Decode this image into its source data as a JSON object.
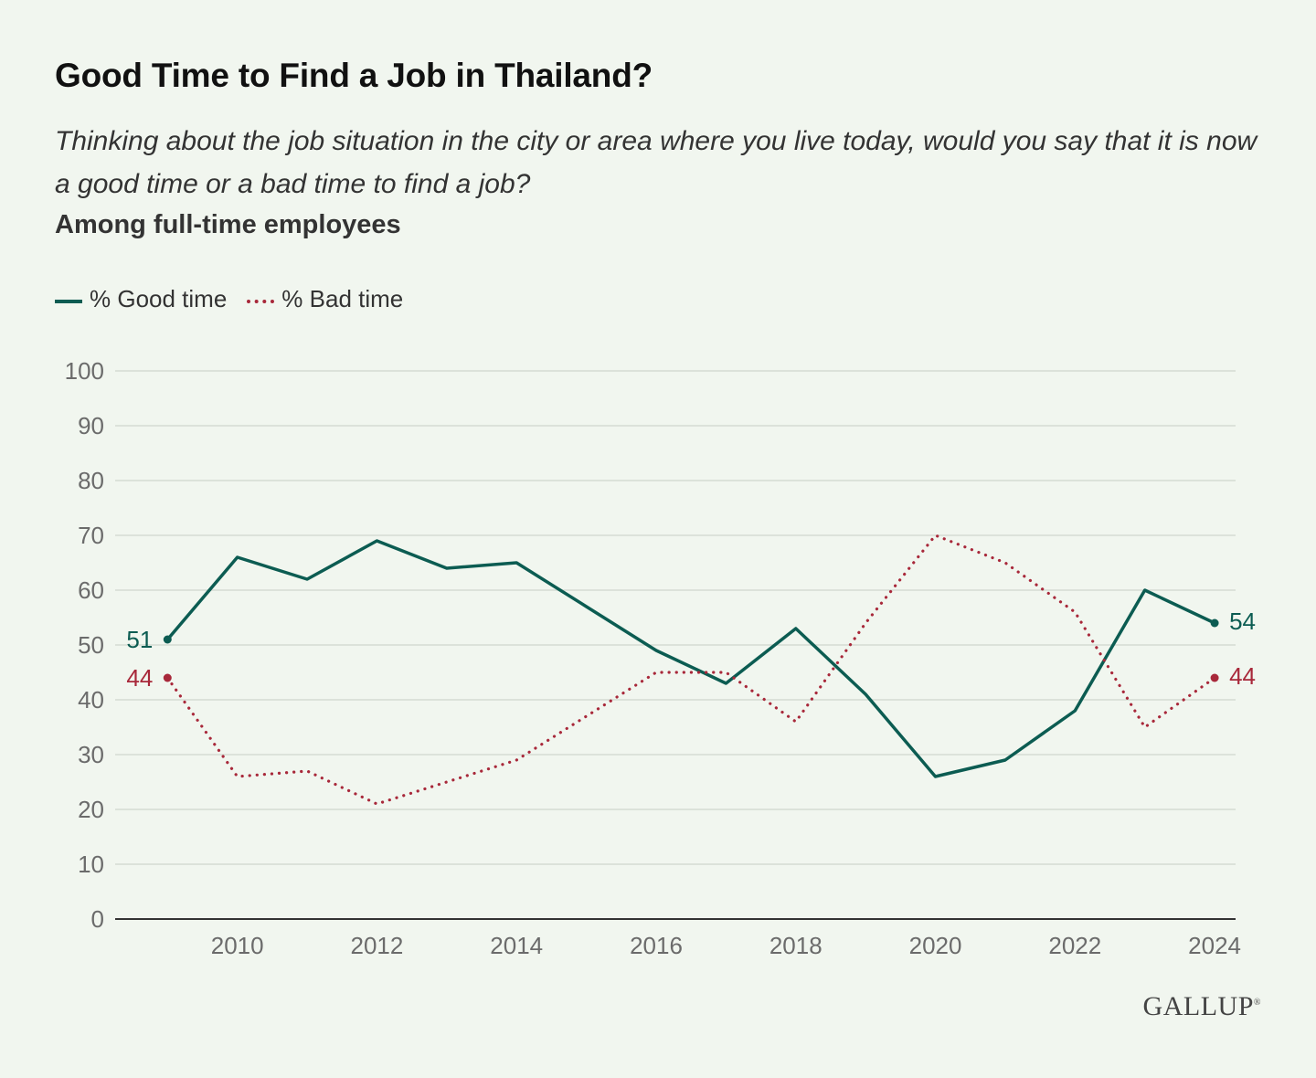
{
  "header": {
    "title": "Good Time to Find a Job in Thailand?",
    "subtitle": "Thinking about the job situation in the city or area where you live today, would you say that it is now a good time or a bad time to find a job?",
    "population": "Among full-time employees"
  },
  "legend": {
    "good_label": "% Good time",
    "bad_label": "% Bad time"
  },
  "colors": {
    "good": "#0c5c52",
    "bad": "#a8283a",
    "grid": "#d5dcd3",
    "axis": "#333333",
    "background": "#f1f6ef"
  },
  "logo": {
    "text": "GALLUP",
    "mark": "®"
  },
  "chart_data": {
    "type": "line",
    "title": "Good Time to Find a Job in Thailand?",
    "xlabel": "",
    "ylabel": "",
    "x": [
      2009,
      2010,
      2011,
      2012,
      2013,
      2014,
      2015,
      2016,
      2017,
      2018,
      2019,
      2020,
      2021,
      2022,
      2023,
      2024
    ],
    "xlim": [
      2008.25,
      2024.3
    ],
    "ylim": [
      0,
      100
    ],
    "yticks": [
      0,
      10,
      20,
      30,
      40,
      50,
      60,
      70,
      80,
      90,
      100
    ],
    "xticks": [
      2010,
      2012,
      2014,
      2016,
      2018,
      2020,
      2022,
      2024
    ],
    "grid": true,
    "legend_position": "top-left",
    "series": [
      {
        "name": "% Good time",
        "key": "good",
        "style": "solid",
        "values": [
          51,
          66,
          62,
          69,
          64,
          65,
          57,
          49,
          43,
          53,
          41,
          26,
          29,
          38,
          60,
          54
        ],
        "start_label": "51",
        "end_label": "54"
      },
      {
        "name": "% Bad time",
        "key": "bad",
        "style": "dotted",
        "values": [
          44,
          26,
          27,
          21,
          25,
          29,
          37,
          45,
          45,
          36,
          54,
          70,
          65,
          56,
          35,
          44
        ],
        "start_label": "44",
        "end_label": "44"
      }
    ]
  }
}
